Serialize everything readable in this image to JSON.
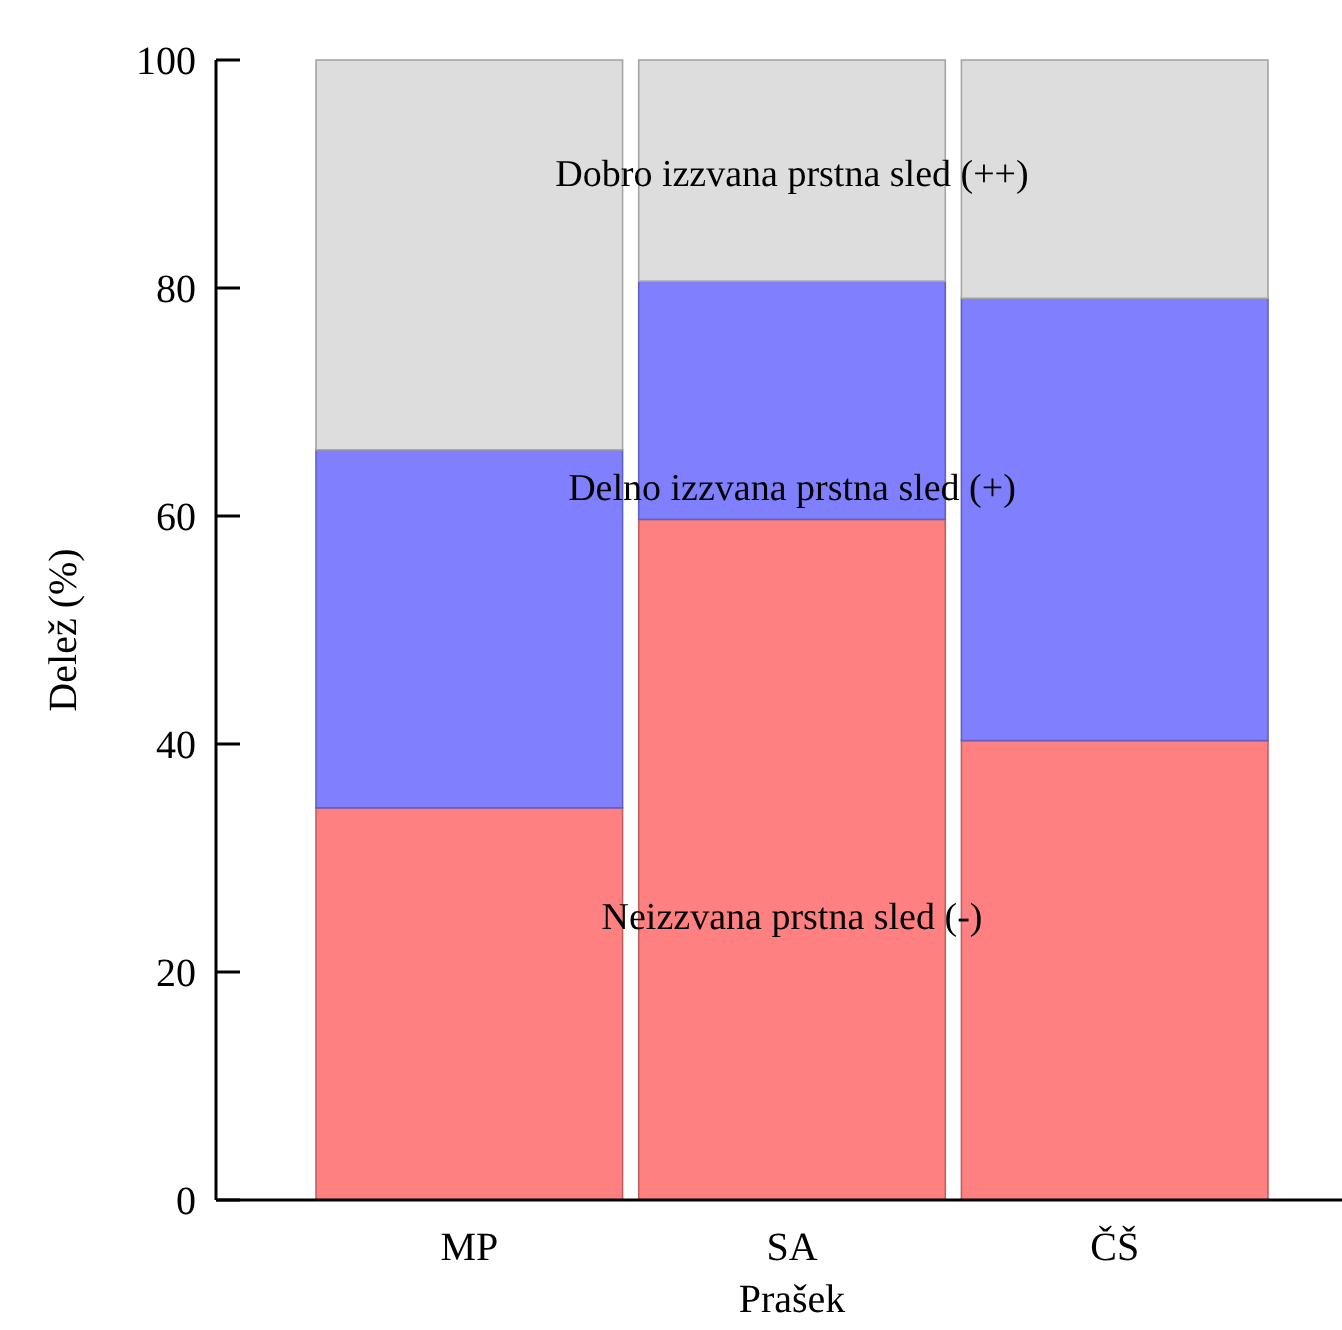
{
  "chart_data": {
    "type": "bar",
    "stacked": true,
    "xlabel": "Prašek",
    "ylabel": "Delež (%)",
    "categories": [
      "MP",
      "SA",
      "ČŠ"
    ],
    "series": [
      {
        "name": "Neizzvana prstna sled (-)",
        "color": "#ff8080",
        "values": [
          34.4,
          59.7,
          40.3
        ]
      },
      {
        "name": "Delno izzvana prstna sled (+)",
        "color": "#8080ff",
        "values": [
          31.4,
          20.9,
          38.8
        ]
      },
      {
        "name": "Dobro izzvana prstna sled (++)",
        "color": "#dddddd",
        "values": [
          34.2,
          19.4,
          20.9
        ]
      }
    ],
    "ylim": [
      0,
      100
    ],
    "yticks": [
      0,
      20,
      40,
      60,
      80,
      100
    ],
    "grid": false
  }
}
